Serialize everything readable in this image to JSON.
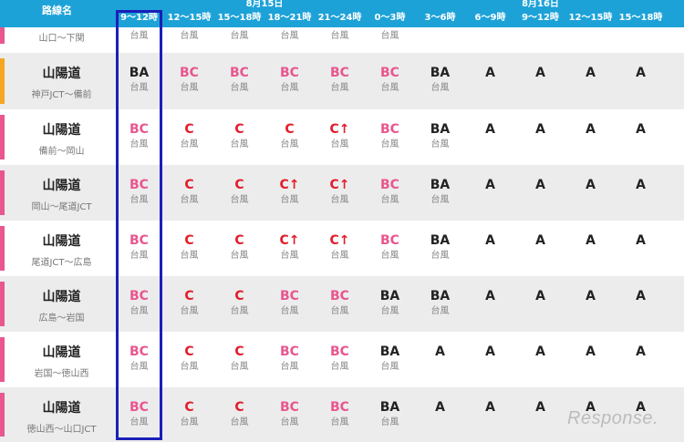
{
  "header": {
    "route_col": "路線名",
    "dates": [
      {
        "label": "8月15日",
        "span": 6
      },
      {
        "label": "8月16日",
        "span": 5
      }
    ],
    "times": [
      "9〜12時",
      "12〜15時",
      "15〜18時",
      "18〜21時",
      "21〜24時",
      "0〜3時",
      "3〜6時",
      "6〜9時",
      "9〜12時",
      "12〜15時",
      "15〜18時"
    ]
  },
  "colors": {
    "header_bg": "#1da2d8",
    "bar_pink": "#e8578f",
    "bar_orange": "#f5a623",
    "level_BC": "#e8578f",
    "level_C": "#e21d2b",
    "highlight": "#1a1fb8"
  },
  "rows": [
    {
      "name": "",
      "section": "山口〜下関",
      "bar": "pink",
      "cells": [
        {
          "lv": "",
          "note": "台風"
        },
        {
          "lv": "",
          "note": "台風"
        },
        {
          "lv": "",
          "note": "台風"
        },
        {
          "lv": "",
          "note": "台風"
        },
        {
          "lv": "",
          "note": "台風"
        },
        {
          "lv": "",
          "note": "台風"
        },
        {
          "lv": "",
          "note": ""
        },
        {
          "lv": "",
          "note": ""
        },
        {
          "lv": "",
          "note": ""
        },
        {
          "lv": "",
          "note": ""
        },
        {
          "lv": "",
          "note": ""
        }
      ]
    },
    {
      "name": "山陽道",
      "section": "神戸JCT〜備前",
      "bar": "orange",
      "cells": [
        {
          "lv": "BA",
          "note": "台風"
        },
        {
          "lv": "BC",
          "note": "台風"
        },
        {
          "lv": "BC",
          "note": "台風"
        },
        {
          "lv": "BC",
          "note": "台風"
        },
        {
          "lv": "BC",
          "note": "台風"
        },
        {
          "lv": "BC",
          "note": "台風"
        },
        {
          "lv": "BA",
          "note": "台風"
        },
        {
          "lv": "A",
          "note": ""
        },
        {
          "lv": "A",
          "note": ""
        },
        {
          "lv": "A",
          "note": ""
        },
        {
          "lv": "A",
          "note": ""
        }
      ]
    },
    {
      "name": "山陽道",
      "section": "備前〜岡山",
      "bar": "pink",
      "cells": [
        {
          "lv": "BC",
          "note": "台風"
        },
        {
          "lv": "C",
          "note": "台風"
        },
        {
          "lv": "C",
          "note": "台風"
        },
        {
          "lv": "C",
          "note": "台風"
        },
        {
          "lv": "C↑",
          "note": "台風"
        },
        {
          "lv": "BC",
          "note": "台風"
        },
        {
          "lv": "BA",
          "note": "台風"
        },
        {
          "lv": "A",
          "note": ""
        },
        {
          "lv": "A",
          "note": ""
        },
        {
          "lv": "A",
          "note": ""
        },
        {
          "lv": "A",
          "note": ""
        }
      ]
    },
    {
      "name": "山陽道",
      "section": "岡山〜尾道JCT",
      "bar": "pink",
      "cells": [
        {
          "lv": "BC",
          "note": "台風"
        },
        {
          "lv": "C",
          "note": "台風"
        },
        {
          "lv": "C",
          "note": "台風"
        },
        {
          "lv": "C↑",
          "note": "台風"
        },
        {
          "lv": "C↑",
          "note": "台風"
        },
        {
          "lv": "BC",
          "note": "台風"
        },
        {
          "lv": "BA",
          "note": "台風"
        },
        {
          "lv": "A",
          "note": ""
        },
        {
          "lv": "A",
          "note": ""
        },
        {
          "lv": "A",
          "note": ""
        },
        {
          "lv": "A",
          "note": ""
        }
      ]
    },
    {
      "name": "山陽道",
      "section": "尾道JCT〜広島",
      "bar": "pink",
      "cells": [
        {
          "lv": "BC",
          "note": "台風"
        },
        {
          "lv": "C",
          "note": "台風"
        },
        {
          "lv": "C",
          "note": "台風"
        },
        {
          "lv": "C↑",
          "note": "台風"
        },
        {
          "lv": "C↑",
          "note": "台風"
        },
        {
          "lv": "BC",
          "note": "台風"
        },
        {
          "lv": "BA",
          "note": "台風"
        },
        {
          "lv": "A",
          "note": ""
        },
        {
          "lv": "A",
          "note": ""
        },
        {
          "lv": "A",
          "note": ""
        },
        {
          "lv": "A",
          "note": ""
        }
      ]
    },
    {
      "name": "山陽道",
      "section": "広島〜岩国",
      "bar": "pink",
      "cells": [
        {
          "lv": "BC",
          "note": "台風"
        },
        {
          "lv": "C",
          "note": "台風"
        },
        {
          "lv": "C",
          "note": "台風"
        },
        {
          "lv": "BC",
          "note": "台風"
        },
        {
          "lv": "BC",
          "note": "台風"
        },
        {
          "lv": "BA",
          "note": "台風"
        },
        {
          "lv": "BA",
          "note": "台風"
        },
        {
          "lv": "A",
          "note": ""
        },
        {
          "lv": "A",
          "note": ""
        },
        {
          "lv": "A",
          "note": ""
        },
        {
          "lv": "A",
          "note": ""
        }
      ]
    },
    {
      "name": "山陽道",
      "section": "岩国〜徳山西",
      "bar": "pink",
      "cells": [
        {
          "lv": "BC",
          "note": "台風"
        },
        {
          "lv": "C",
          "note": "台風"
        },
        {
          "lv": "C",
          "note": "台風"
        },
        {
          "lv": "BC",
          "note": "台風"
        },
        {
          "lv": "BC",
          "note": "台風"
        },
        {
          "lv": "BA",
          "note": "台風"
        },
        {
          "lv": "A",
          "note": ""
        },
        {
          "lv": "A",
          "note": ""
        },
        {
          "lv": "A",
          "note": ""
        },
        {
          "lv": "A",
          "note": ""
        },
        {
          "lv": "A",
          "note": ""
        }
      ]
    },
    {
      "name": "山陽道",
      "section": "徳山西〜山口JCT",
      "bar": "pink",
      "cells": [
        {
          "lv": "BC",
          "note": "台風"
        },
        {
          "lv": "C",
          "note": "台風"
        },
        {
          "lv": "C",
          "note": "台風"
        },
        {
          "lv": "BC",
          "note": "台風"
        },
        {
          "lv": "BC",
          "note": "台風"
        },
        {
          "lv": "BA",
          "note": "台風"
        },
        {
          "lv": "A",
          "note": ""
        },
        {
          "lv": "A",
          "note": ""
        },
        {
          "lv": "A",
          "note": ""
        },
        {
          "lv": "A",
          "note": ""
        },
        {
          "lv": "A",
          "note": ""
        }
      ]
    }
  ],
  "watermark": "Response."
}
